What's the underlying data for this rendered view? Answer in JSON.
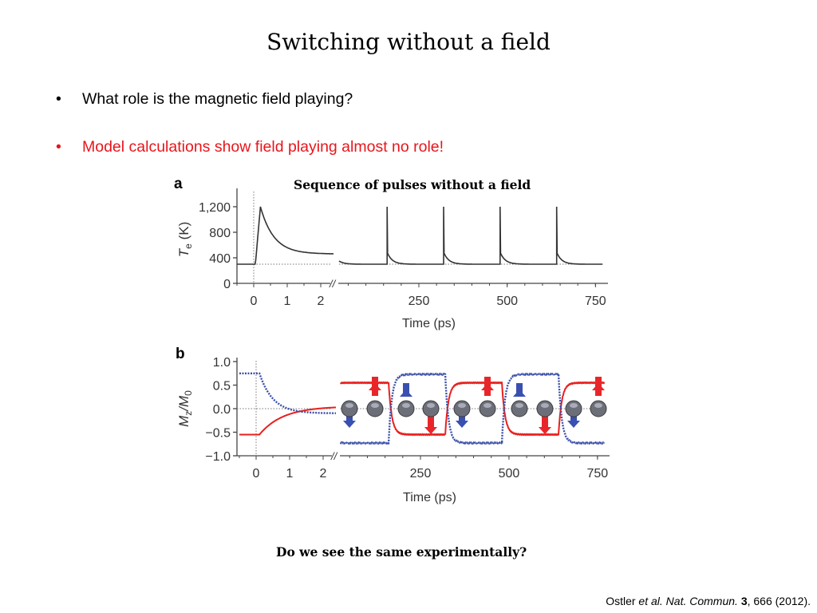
{
  "slide": {
    "title": "Switching without a field",
    "bullets": [
      {
        "marker": "•",
        "text": "What role is the magnetic field playing?",
        "color": "#000000"
      },
      {
        "marker": "•",
        "text": "Model calculations show field playing almost no role!",
        "color": "#e8151b"
      }
    ],
    "figure_caption": "Sequence of pulses without a field",
    "question": "Do we see the same experimentally?",
    "citation": {
      "author": "Ostler ",
      "etal": "et al.",
      "journal": " Nat. Commun.",
      "volume": "3",
      "rest": ", 666 (2012)."
    }
  },
  "chart_data": [
    {
      "type": "line",
      "panel_label": "a",
      "title": "Sequence of pulses without a field",
      "ylabel": "T",
      "ylabel_sub": "e",
      "ylabel_unit": " (K)",
      "xlabel": "Time (ps)",
      "ylim": [
        0,
        1400
      ],
      "yticks": [
        0,
        400,
        800,
        1200
      ],
      "ytick_labels": [
        "0",
        "400",
        "800",
        "1,200"
      ],
      "x_break": true,
      "left_segment": {
        "xlim": [
          -0.5,
          2.4
        ],
        "xticks": [
          0,
          1,
          2
        ],
        "xtick_labels": [
          "0",
          "1",
          "2"
        ]
      },
      "right_segment": {
        "xlim": [
          24,
          770
        ],
        "xticks": [
          250,
          500,
          750
        ],
        "xtick_labels": [
          "250",
          "500",
          "750"
        ]
      },
      "reference_lines": {
        "x": 0,
        "y": 300
      },
      "series": [
        {
          "name": "Te",
          "color": "#333333",
          "left": {
            "baseline": 300,
            "pulse_time": 0.05,
            "peak": 1200,
            "peak_time": 0.2,
            "plateau": 460
          },
          "right": {
            "start": 350,
            "baseline": 300,
            "pulse_times": [
              160,
              320,
              480,
              640
            ],
            "peak": 1200,
            "post_peak": 490
          }
        }
      ]
    },
    {
      "type": "line",
      "panel_label": "b",
      "ylabel": "M",
      "ylabel_sub1": "z",
      "ylabel_mid": "/M",
      "ylabel_sub2": "0",
      "xlabel": "Time (ps)",
      "ylim": [
        -1.0,
        1.0
      ],
      "yticks": [
        -1.0,
        -0.5,
        0.0,
        0.5,
        1.0
      ],
      "ytick_labels": [
        "−1.0",
        "−0.5",
        "0.0",
        "0.5",
        "1.0"
      ],
      "x_break": true,
      "left_segment": {
        "xlim": [
          -0.5,
          2.4
        ],
        "xticks": [
          0,
          1,
          2
        ],
        "xtick_labels": [
          "0",
          "1",
          "2"
        ]
      },
      "right_segment": {
        "xlim": [
          24,
          770
        ],
        "xticks": [
          250,
          500,
          750
        ],
        "xtick_labels": [
          "250",
          "500",
          "750"
        ]
      },
      "reference_lines": {
        "x": 0,
        "y": 0
      },
      "series": [
        {
          "name": "sublattice 1 (red, solid)",
          "color": "#e8201e",
          "style": "solid",
          "left": {
            "initial": -0.55,
            "final": 0.05
          },
          "right": {
            "initial": 0.55,
            "switch_times": [
              160,
              320,
              480,
              640
            ]
          }
        },
        {
          "name": "sublattice 2 (blue, dotted)",
          "color": "#3a4fa8",
          "style": "dotted",
          "left": {
            "initial": 0.75,
            "final": -0.1
          },
          "right": {
            "initial": -0.73,
            "switch_times": [
              160,
              320,
              480,
              640
            ]
          }
        }
      ],
      "spin_icons": [
        {
          "blue": "down",
          "red": "up"
        },
        {
          "blue": "up",
          "red": "down"
        },
        {
          "blue": "down",
          "red": "up"
        },
        {
          "blue": "up",
          "red": "down"
        },
        {
          "blue": "down",
          "red": "up"
        }
      ]
    }
  ]
}
